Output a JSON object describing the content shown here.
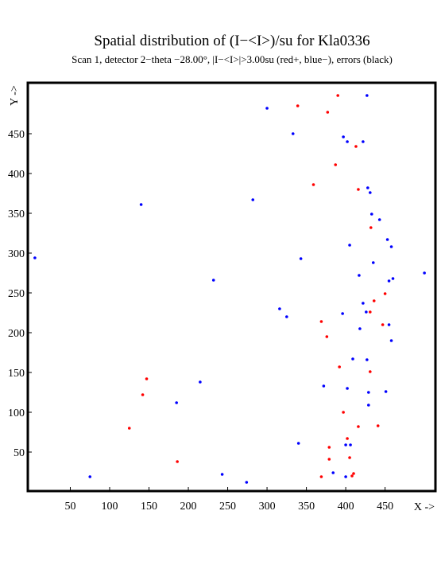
{
  "chart_data": {
    "type": "scatter",
    "title": "Spatial distribution of (I−<I>)/su for Kla0336",
    "subtitle": "Scan  1, detector 2−theta −28.00°, |I−<I>|>3.00su (red+, blue−), errors (black)",
    "x_label": "X ->",
    "y_label": "Y ->",
    "xlim": [
      -4,
      514
    ],
    "ylim": [
      1,
      514
    ],
    "xticks": [
      50,
      100,
      150,
      200,
      250,
      300,
      350,
      400,
      450
    ],
    "yticks": [
      50,
      100,
      150,
      200,
      250,
      300,
      350,
      400,
      450
    ],
    "series": [
      {
        "name": "red+",
        "color": "#ff0000",
        "x": [
          390,
          339,
          377,
          413,
          387,
          359,
          416,
          432,
          450,
          436,
          431,
          447,
          369,
          376,
          392,
          431,
          147,
          142,
          397,
          125,
          416,
          441,
          402,
          379,
          405,
          379,
          186,
          410,
          408,
          369
        ],
        "values": [
          498,
          485,
          477,
          434,
          411,
          386,
          380,
          332,
          249,
          240,
          226,
          210,
          214,
          195,
          157,
          151,
          142,
          122,
          100,
          80,
          82,
          83,
          67,
          56,
          43,
          41,
          38,
          23,
          20,
          19
        ]
      },
      {
        "name": "blue−",
        "color": "#0000ff",
        "x": [
          427,
          300,
          333,
          397,
          402,
          422,
          428,
          431,
          282,
          140,
          433,
          443,
          453,
          458,
          405,
          5,
          343,
          435,
          500,
          417,
          460,
          455,
          232,
          422,
          316,
          426,
          396,
          325,
          455,
          418,
          458,
          409,
          427,
          215,
          372,
          402,
          429,
          451,
          429,
          185,
          340,
          400,
          406,
          384,
          243,
          75,
          400,
          274
        ],
        "values": [
          498,
          482,
          450,
          446,
          440,
          440,
          382,
          376,
          367,
          361,
          349,
          342,
          317,
          308,
          310,
          294,
          293,
          288,
          275,
          272,
          268,
          265,
          266,
          237,
          230,
          226,
          224,
          220,
          210,
          205,
          190,
          167,
          166,
          138,
          133,
          130,
          125,
          126,
          109,
          112,
          61,
          59,
          59,
          24,
          22,
          19,
          19,
          12
        ]
      }
    ]
  }
}
